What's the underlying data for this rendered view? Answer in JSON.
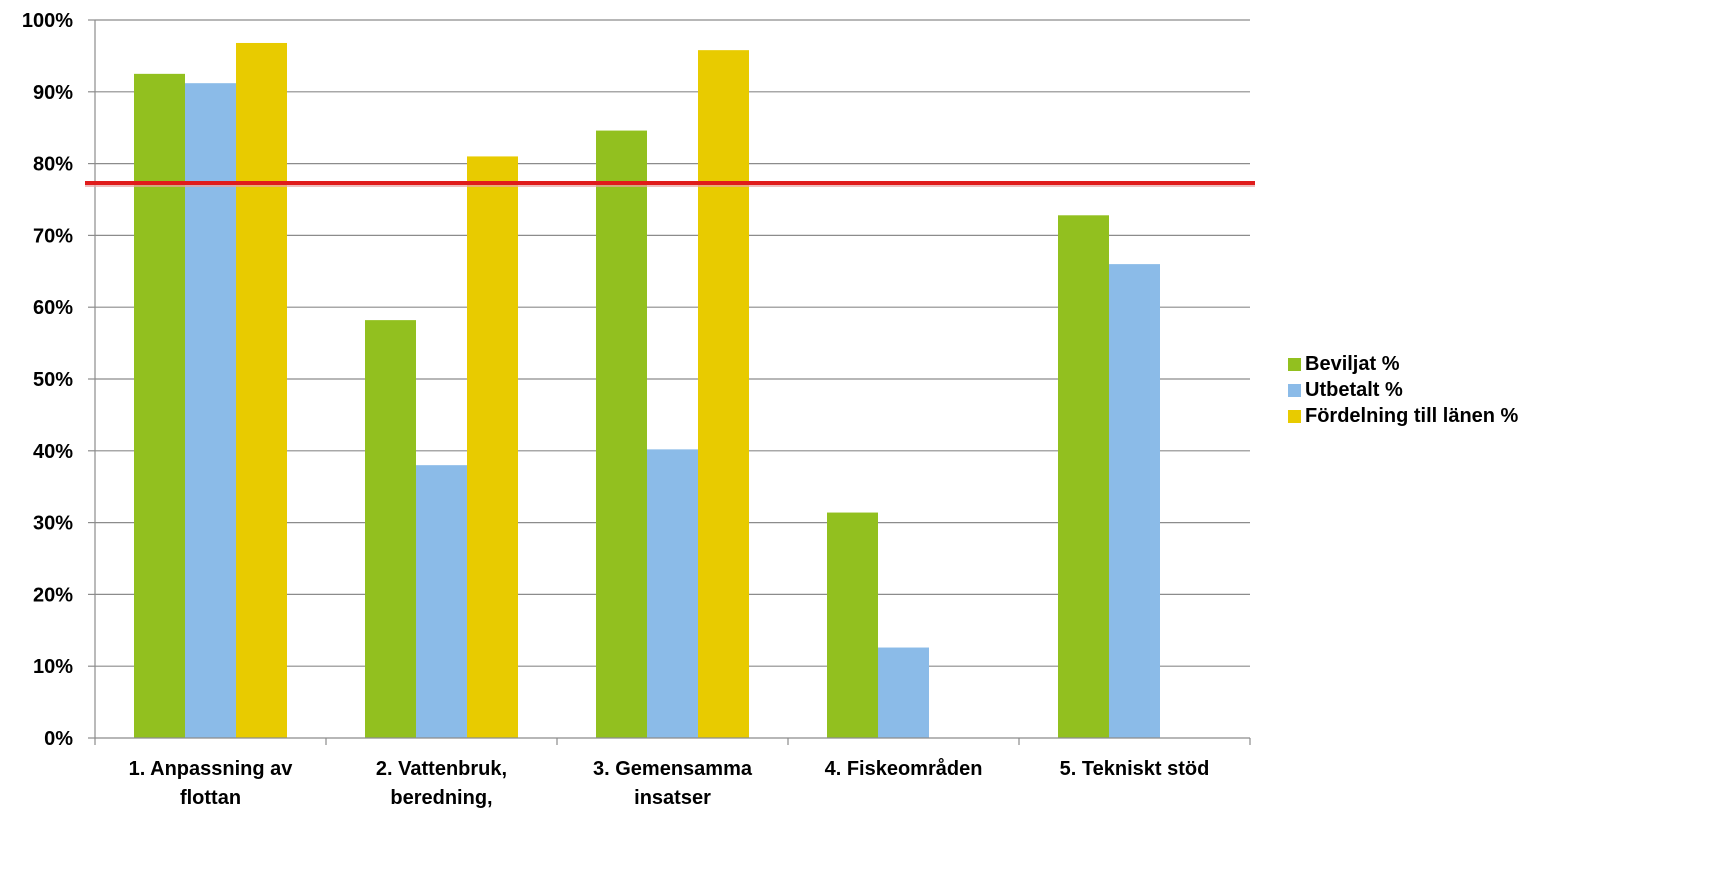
{
  "chart_data": {
    "type": "bar",
    "title": "",
    "xlabel": "",
    "ylabel": "",
    "ylim": [
      0,
      100
    ],
    "y_ticks": [
      "0%",
      "10%",
      "20%",
      "30%",
      "40%",
      "50%",
      "60%",
      "70%",
      "80%",
      "90%",
      "100%"
    ],
    "grid": true,
    "legend_position": "right",
    "categories": [
      [
        "1. Anpassning av",
        "flottan"
      ],
      [
        "2. Vattenbruk,",
        "beredning,"
      ],
      [
        "3. Gemensamma",
        "insatser"
      ],
      [
        "4. Fiskeområden"
      ],
      [
        "5. Tekniskt stöd"
      ]
    ],
    "series": [
      {
        "name": "Beviljat %",
        "color": "#92C01F",
        "values": [
          92.5,
          58.2,
          84.6,
          31.4,
          72.8
        ]
      },
      {
        "name": "Utbetalt %",
        "color": "#8BBBE8",
        "values": [
          91.2,
          38.0,
          40.2,
          12.6,
          66.0
        ]
      },
      {
        "name": "Fördelning till länen %",
        "color": "#E8CB00",
        "values": [
          96.8,
          81.0,
          95.8,
          null,
          null
        ]
      }
    ],
    "reference_line": {
      "value": 77.3,
      "color": "#E01B1B"
    }
  }
}
